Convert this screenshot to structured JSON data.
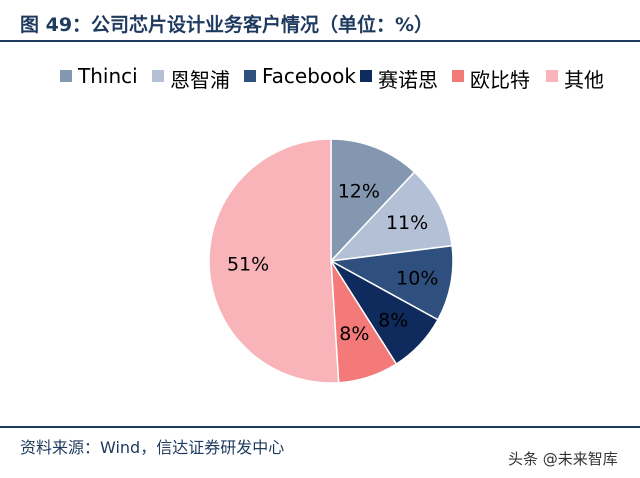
{
  "title": "图 49：公司芯片设计业务客户情况（单位：%）",
  "source": "资料来源：Wind，信达证券研发中心",
  "watermark": "头条 @未来智库",
  "chart_data": {
    "type": "pie",
    "categories": [
      "Thinci",
      "恩智浦",
      "Facebook",
      "赛诺思",
      "欧比特",
      "其他"
    ],
    "values": [
      12,
      11,
      10,
      8,
      8,
      51
    ],
    "labels": [
      "12%",
      "11%",
      "10%",
      "8%",
      "8%",
      "51%"
    ],
    "colors": [
      "#8497b0",
      "#b4c0d6",
      "#2f4f7f",
      "#0f2a5c",
      "#f47a7a",
      "#f8b4b8"
    ],
    "legend_position": "top"
  }
}
